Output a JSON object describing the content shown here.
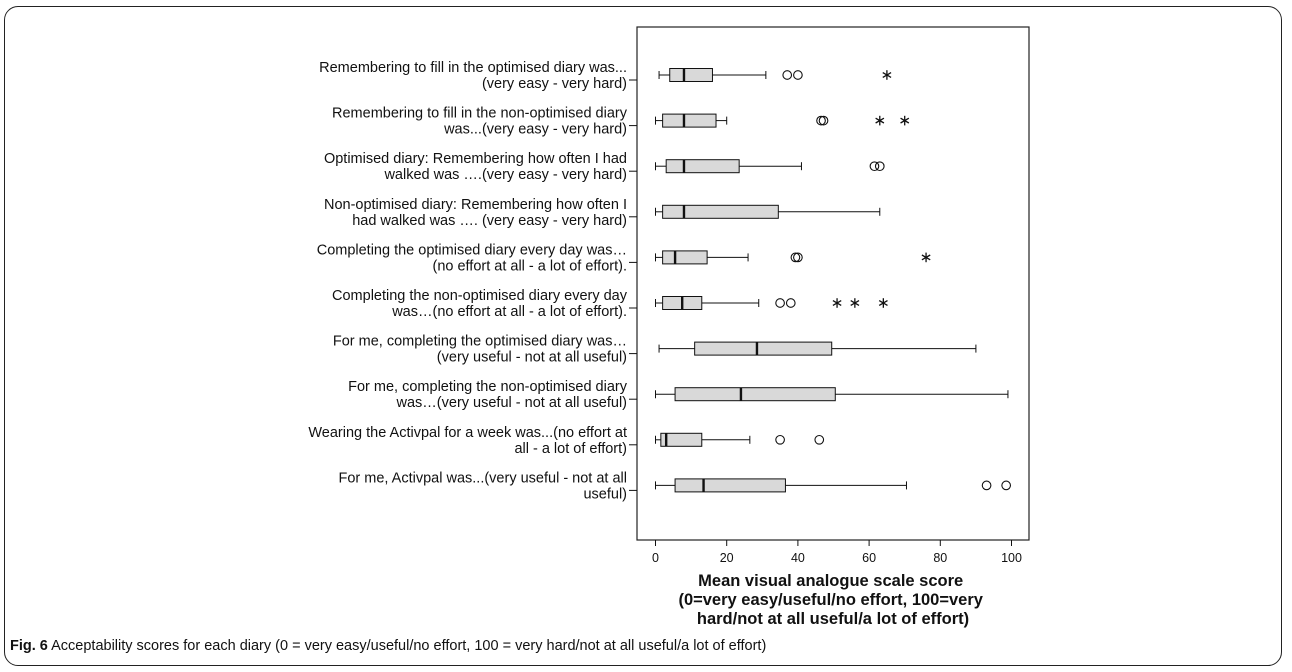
{
  "caption": {
    "figure_label": "Fig. 6",
    "text": "Acceptability scores for each diary (0 = very easy/useful/no effort, 100 = very hard/not at all useful/a lot of effort)"
  },
  "chart_data": {
    "type": "boxplot",
    "orientation": "horizontal",
    "xlabel": [
      "Mean visual analogue scale score",
      "(0=very easy/useful/no effort, 100=very",
      "hard/not at all useful/a lot of effort)"
    ],
    "xlim": [
      -5,
      107
    ],
    "xticks": [
      0,
      20,
      40,
      60,
      80,
      100
    ],
    "grid": false,
    "box_fill": "#d9d9d9",
    "series": [
      {
        "label": [
          "Remembering to fill in the optimised diary was...",
          "(very easy - very hard)"
        ],
        "whisker_low": 1,
        "q1": 4,
        "median": 8,
        "q3": 16,
        "whisker_high": 31,
        "outliers": [
          37,
          40
        ],
        "extremes": [
          65
        ]
      },
      {
        "label": [
          "Remembering to fill in the non-optimised diary",
          "was...(very easy - very hard)"
        ],
        "whisker_low": 0,
        "q1": 2,
        "median": 8,
        "q3": 17,
        "whisker_high": 20,
        "outliers": [
          46.5,
          47.2
        ],
        "extremes": [
          63,
          70
        ]
      },
      {
        "label": [
          "Optimised diary: Remembering how often I had",
          "walked was ….(very easy - very hard)"
        ],
        "whisker_low": 0,
        "q1": 3,
        "median": 8,
        "q3": 23.5,
        "whisker_high": 41,
        "outliers": [
          61.5,
          63
        ],
        "extremes": []
      },
      {
        "label": [
          "Non-optimised diary: Remembering how often I",
          "had walked was …. (very easy - very hard)"
        ],
        "whisker_low": 0,
        "q1": 2,
        "median": 8,
        "q3": 34.5,
        "whisker_high": 63,
        "outliers": [],
        "extremes": []
      },
      {
        "label": [
          "Completing the optimised diary every day was…",
          "(no effort at all - a lot of effort)."
        ],
        "whisker_low": 0,
        "q1": 2,
        "median": 5.5,
        "q3": 14.5,
        "whisker_high": 26,
        "outliers": [
          39.3,
          40
        ],
        "extremes": [
          76
        ]
      },
      {
        "label": [
          "Completing the non-optimised diary every day",
          "was…(no effort at all - a lot of effort)."
        ],
        "whisker_low": 0,
        "q1": 2,
        "median": 7.5,
        "q3": 13,
        "whisker_high": 29,
        "outliers": [
          35,
          38
        ],
        "extremes": [
          51,
          56,
          64
        ]
      },
      {
        "label": [
          "For me, completing the optimised diary was…",
          "(very useful - not at all useful)"
        ],
        "whisker_low": 1,
        "q1": 11,
        "median": 28.5,
        "q3": 49.5,
        "whisker_high": 90,
        "outliers": [],
        "extremes": []
      },
      {
        "label": [
          "For me, completing the non-optimised diary",
          "was…(very useful - not at all useful)"
        ],
        "whisker_low": 0,
        "q1": 5.5,
        "median": 24,
        "q3": 50.5,
        "whisker_high": 99,
        "outliers": [],
        "extremes": []
      },
      {
        "label": [
          "Wearing the Activpal for a week was...(no effort at",
          "all - a lot of effort)"
        ],
        "whisker_low": 0,
        "q1": 1.5,
        "median": 3,
        "q3": 13,
        "whisker_high": 26.5,
        "outliers": [
          35,
          46
        ],
        "extremes": []
      },
      {
        "label": [
          "For me, Activpal was...(very useful - not at all",
          "useful)"
        ],
        "whisker_low": 0,
        "q1": 5.5,
        "median": 13.5,
        "q3": 36.5,
        "whisker_high": 70.5,
        "outliers": [
          93,
          98.5
        ],
        "extremes": []
      }
    ]
  }
}
